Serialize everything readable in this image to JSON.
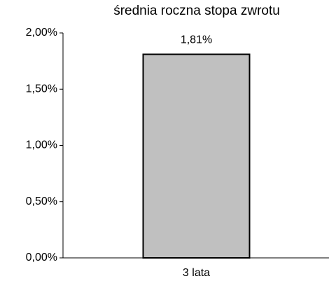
{
  "chart_data": {
    "type": "bar",
    "title": "średnia roczna stopa zwrotu",
    "categories": [
      "3 lata"
    ],
    "values": [
      1.81
    ],
    "value_labels": [
      "1,81%"
    ],
    "color": "#c0c0c0",
    "ylim": [
      0,
      2
    ],
    "yticks": [
      {
        "value": 0,
        "label": "0,00%"
      },
      {
        "value": 0.5,
        "label": "0,50%"
      },
      {
        "value": 1,
        "label": "1,00%"
      },
      {
        "value": 1.5,
        "label": "1,50%"
      },
      {
        "value": 2,
        "label": "2,00%"
      }
    ],
    "grid": false
  }
}
